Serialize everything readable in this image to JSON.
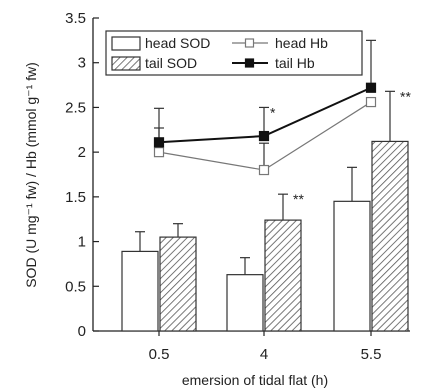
{
  "chart_data": {
    "type": "bar",
    "title": "",
    "xlabel": "emersion of tidal flat (h)",
    "ylabel": "SOD (U mg⁻¹ fw) / Hb (mmol g⁻¹ fw)",
    "categories": [
      "0.5",
      "4",
      "5.5"
    ],
    "ylim": [
      0,
      3.5
    ],
    "yticks": [
      "0",
      "0.5",
      "1",
      "1.5",
      "2",
      "2.5",
      "3",
      "3.5"
    ],
    "series": [
      {
        "name": "head SOD",
        "kind": "bar",
        "fill": "white",
        "values": [
          0.89,
          0.63,
          1.45
        ],
        "errors": [
          0.22,
          0.19,
          0.38
        ]
      },
      {
        "name": "tail SOD",
        "kind": "bar",
        "fill": "hatched",
        "values": [
          1.05,
          1.24,
          2.12
        ],
        "errors": [
          0.15,
          0.29,
          0.56
        ]
      },
      {
        "name": "head Hb",
        "kind": "line",
        "marker": "open-square",
        "values": [
          2.0,
          1.8,
          2.56
        ],
        "errors": [
          0.27,
          0.3,
          0.0
        ]
      },
      {
        "name": "tail Hb",
        "kind": "line",
        "marker": "filled-square",
        "values": [
          2.11,
          2.18,
          2.72
        ],
        "errors": [
          0.38,
          0.32,
          0.53
        ]
      }
    ],
    "annotations": [
      {
        "category": "4",
        "series": "tail Hb",
        "text": "*"
      },
      {
        "category": "4",
        "series": "tail SOD",
        "text": "**"
      },
      {
        "category": "5.5",
        "series": "tail SOD",
        "text": "**"
      }
    ],
    "legend_position": "top",
    "grid": false,
    "colors": {
      "line": "#333333",
      "hatch": "#555555",
      "axis": "#222222"
    }
  }
}
